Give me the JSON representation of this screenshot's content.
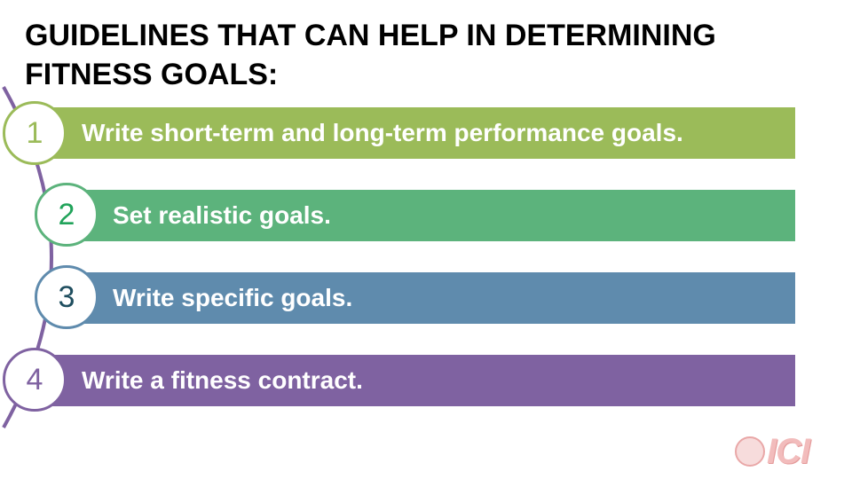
{
  "slide": {
    "title": "GUIDELINES THAT CAN HELP IN DETERMINING FITNESS GOALS:"
  },
  "items": [
    {
      "number": "1",
      "text": "Write short-term and long-term performance goals.",
      "color": "#9bbb59"
    },
    {
      "number": "2",
      "text": "Set realistic goals.",
      "color": "#5cb37c"
    },
    {
      "number": "3",
      "text": "Write specific goals.",
      "color": "#5f8bad"
    },
    {
      "number": "4",
      "text": "Write a fitness contract.",
      "color": "#7f62a1"
    }
  ],
  "colors": {
    "arc": "#7f62a1",
    "number_1": "#9bbb59",
    "number_2": "#21a35a",
    "number_3": "#1f4e5f",
    "number_4": "#7f62a1"
  },
  "logo": {
    "text": "ICI"
  }
}
